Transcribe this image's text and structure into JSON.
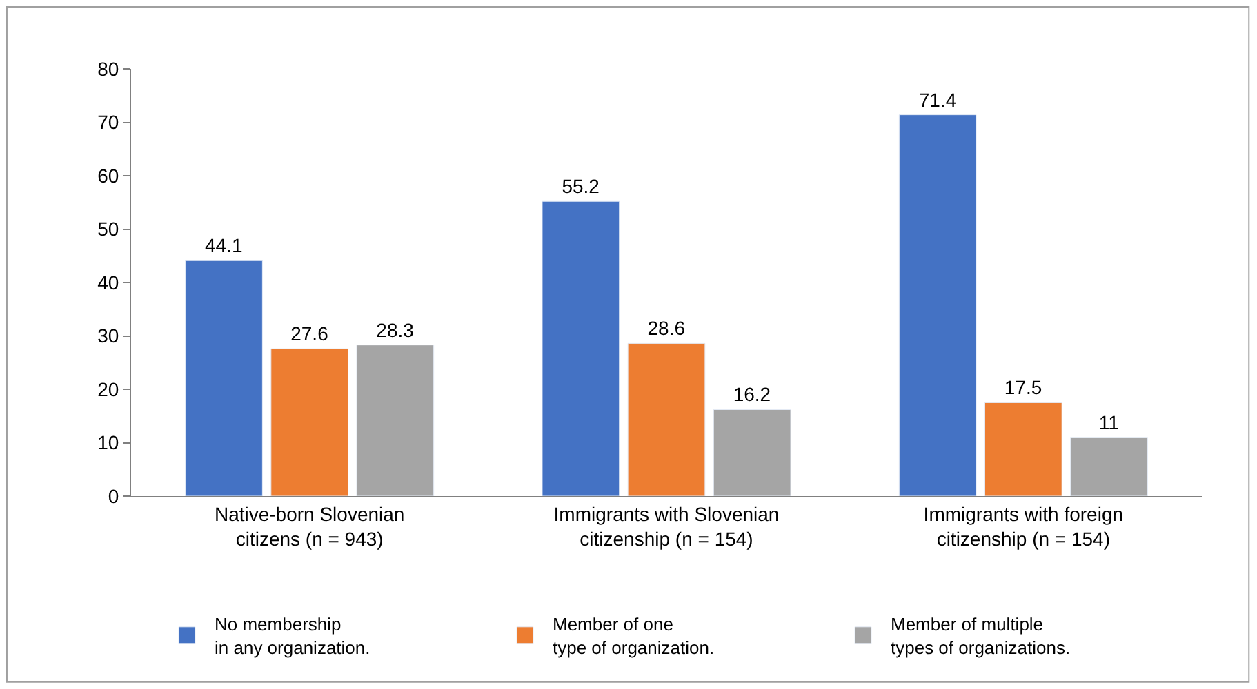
{
  "chart_data": {
    "type": "bar",
    "categories": [
      "Native-born Slovenian\ncitizens (n = 943)",
      "Immigrants with Slovenian\ncitizenship (n = 154)",
      "Immigrants with foreign\ncitizenship (n = 154)"
    ],
    "series": [
      {
        "name": "No membership\nin any organization.",
        "color": "#4472c4",
        "values": [
          44.1,
          55.2,
          71.4
        ]
      },
      {
        "name": "Member of one\ntype of organization.",
        "color": "#ed7d31",
        "values": [
          27.6,
          28.6,
          17.5
        ]
      },
      {
        "name": "Member of multiple\ntypes of organizations.",
        "color": "#a5a5a5",
        "values": [
          28.3,
          16.2,
          11
        ]
      }
    ],
    "ylim": [
      0,
      80
    ],
    "yticks": [
      0,
      10,
      20,
      30,
      40,
      50,
      60,
      70,
      80
    ],
    "data_labels": true,
    "legend": "bottom"
  }
}
